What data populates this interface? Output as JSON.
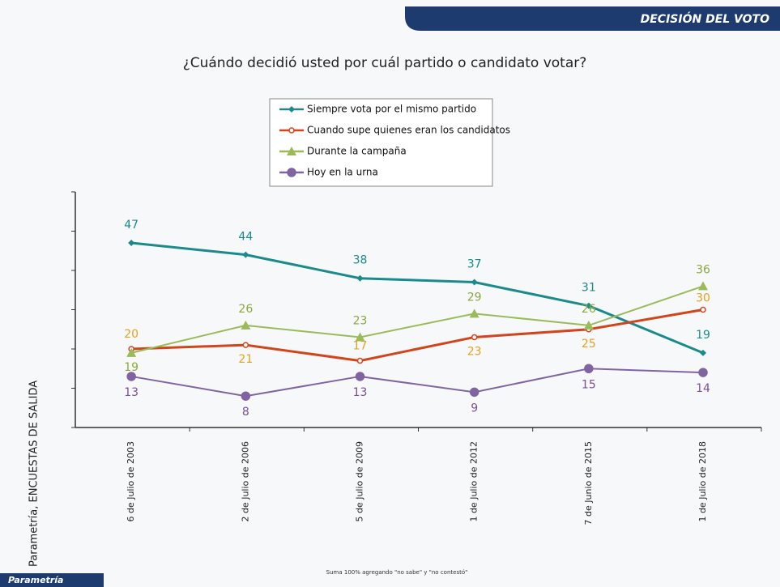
{
  "header": "DECISIÓN DEL VOTO",
  "side_label": "Parametría, ENCUESTAS DE SALIDA",
  "footnote": "Suma 100% agregando \"no sabe\" y \"no contestó\"",
  "logo": "Parametría",
  "chart_data": {
    "type": "line",
    "title": "¿Cuándo decidió usted por cuál partido o candidato votar?",
    "categories": [
      "6 de Julio de 2003",
      "2 de Julio de 2006",
      "5 de Julio de 2009",
      "1 de Julio de 2012",
      "7 de Junio de 2015",
      "1 de Julio de 2018"
    ],
    "series": [
      {
        "name": "Siempre vota por el mismo partido",
        "color": "#1b8a8c",
        "label_color": "#1b8a8c",
        "marker": "diamond",
        "values": [
          47,
          44,
          38,
          37,
          31,
          19
        ]
      },
      {
        "name": "Cuando supe quienes eran los candidatos",
        "color": "#d0451b",
        "label_color": "#e3a21a",
        "marker": "circle",
        "values": [
          20,
          21,
          17,
          23,
          25,
          30
        ]
      },
      {
        "name": "Durante la campaña",
        "color": "#9bbb59",
        "label_color": "#8aa83e",
        "marker": "triangle",
        "values": [
          19,
          26,
          23,
          29,
          26,
          36
        ]
      },
      {
        "name": "Hoy en la urna",
        "color": "#8064a2",
        "label_color": "#7a4f9a",
        "marker": "circle",
        "values": [
          13,
          8,
          13,
          9,
          15,
          14
        ]
      }
    ],
    "ylim": [
      0,
      60
    ],
    "yticks": [
      0,
      10,
      20,
      30,
      40,
      50,
      60
    ],
    "legend": "top"
  }
}
